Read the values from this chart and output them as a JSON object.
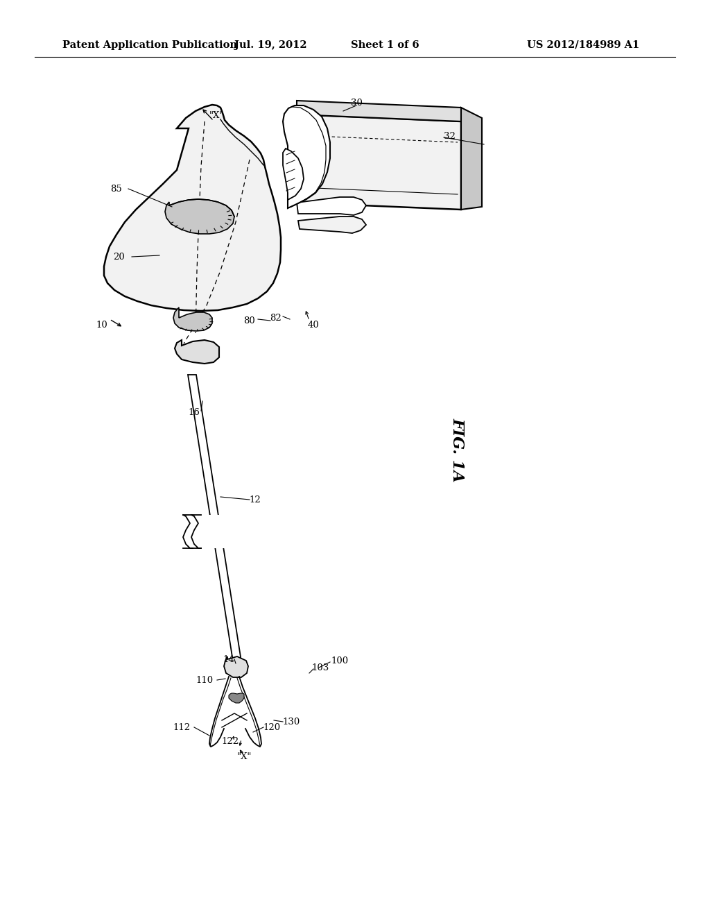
{
  "background_color": "#ffffff",
  "header_text": "Patent Application Publication",
  "header_date": "Jul. 19, 2012",
  "header_sheet": "Sheet 1 of 6",
  "header_patent": "US 2012/184989 A1",
  "figure_label": "FIG. 1A",
  "line_color": "#000000",
  "fill_light": "#f2f2f2",
  "fill_mid": "#e0e0e0",
  "fill_dark": "#c8c8c8"
}
